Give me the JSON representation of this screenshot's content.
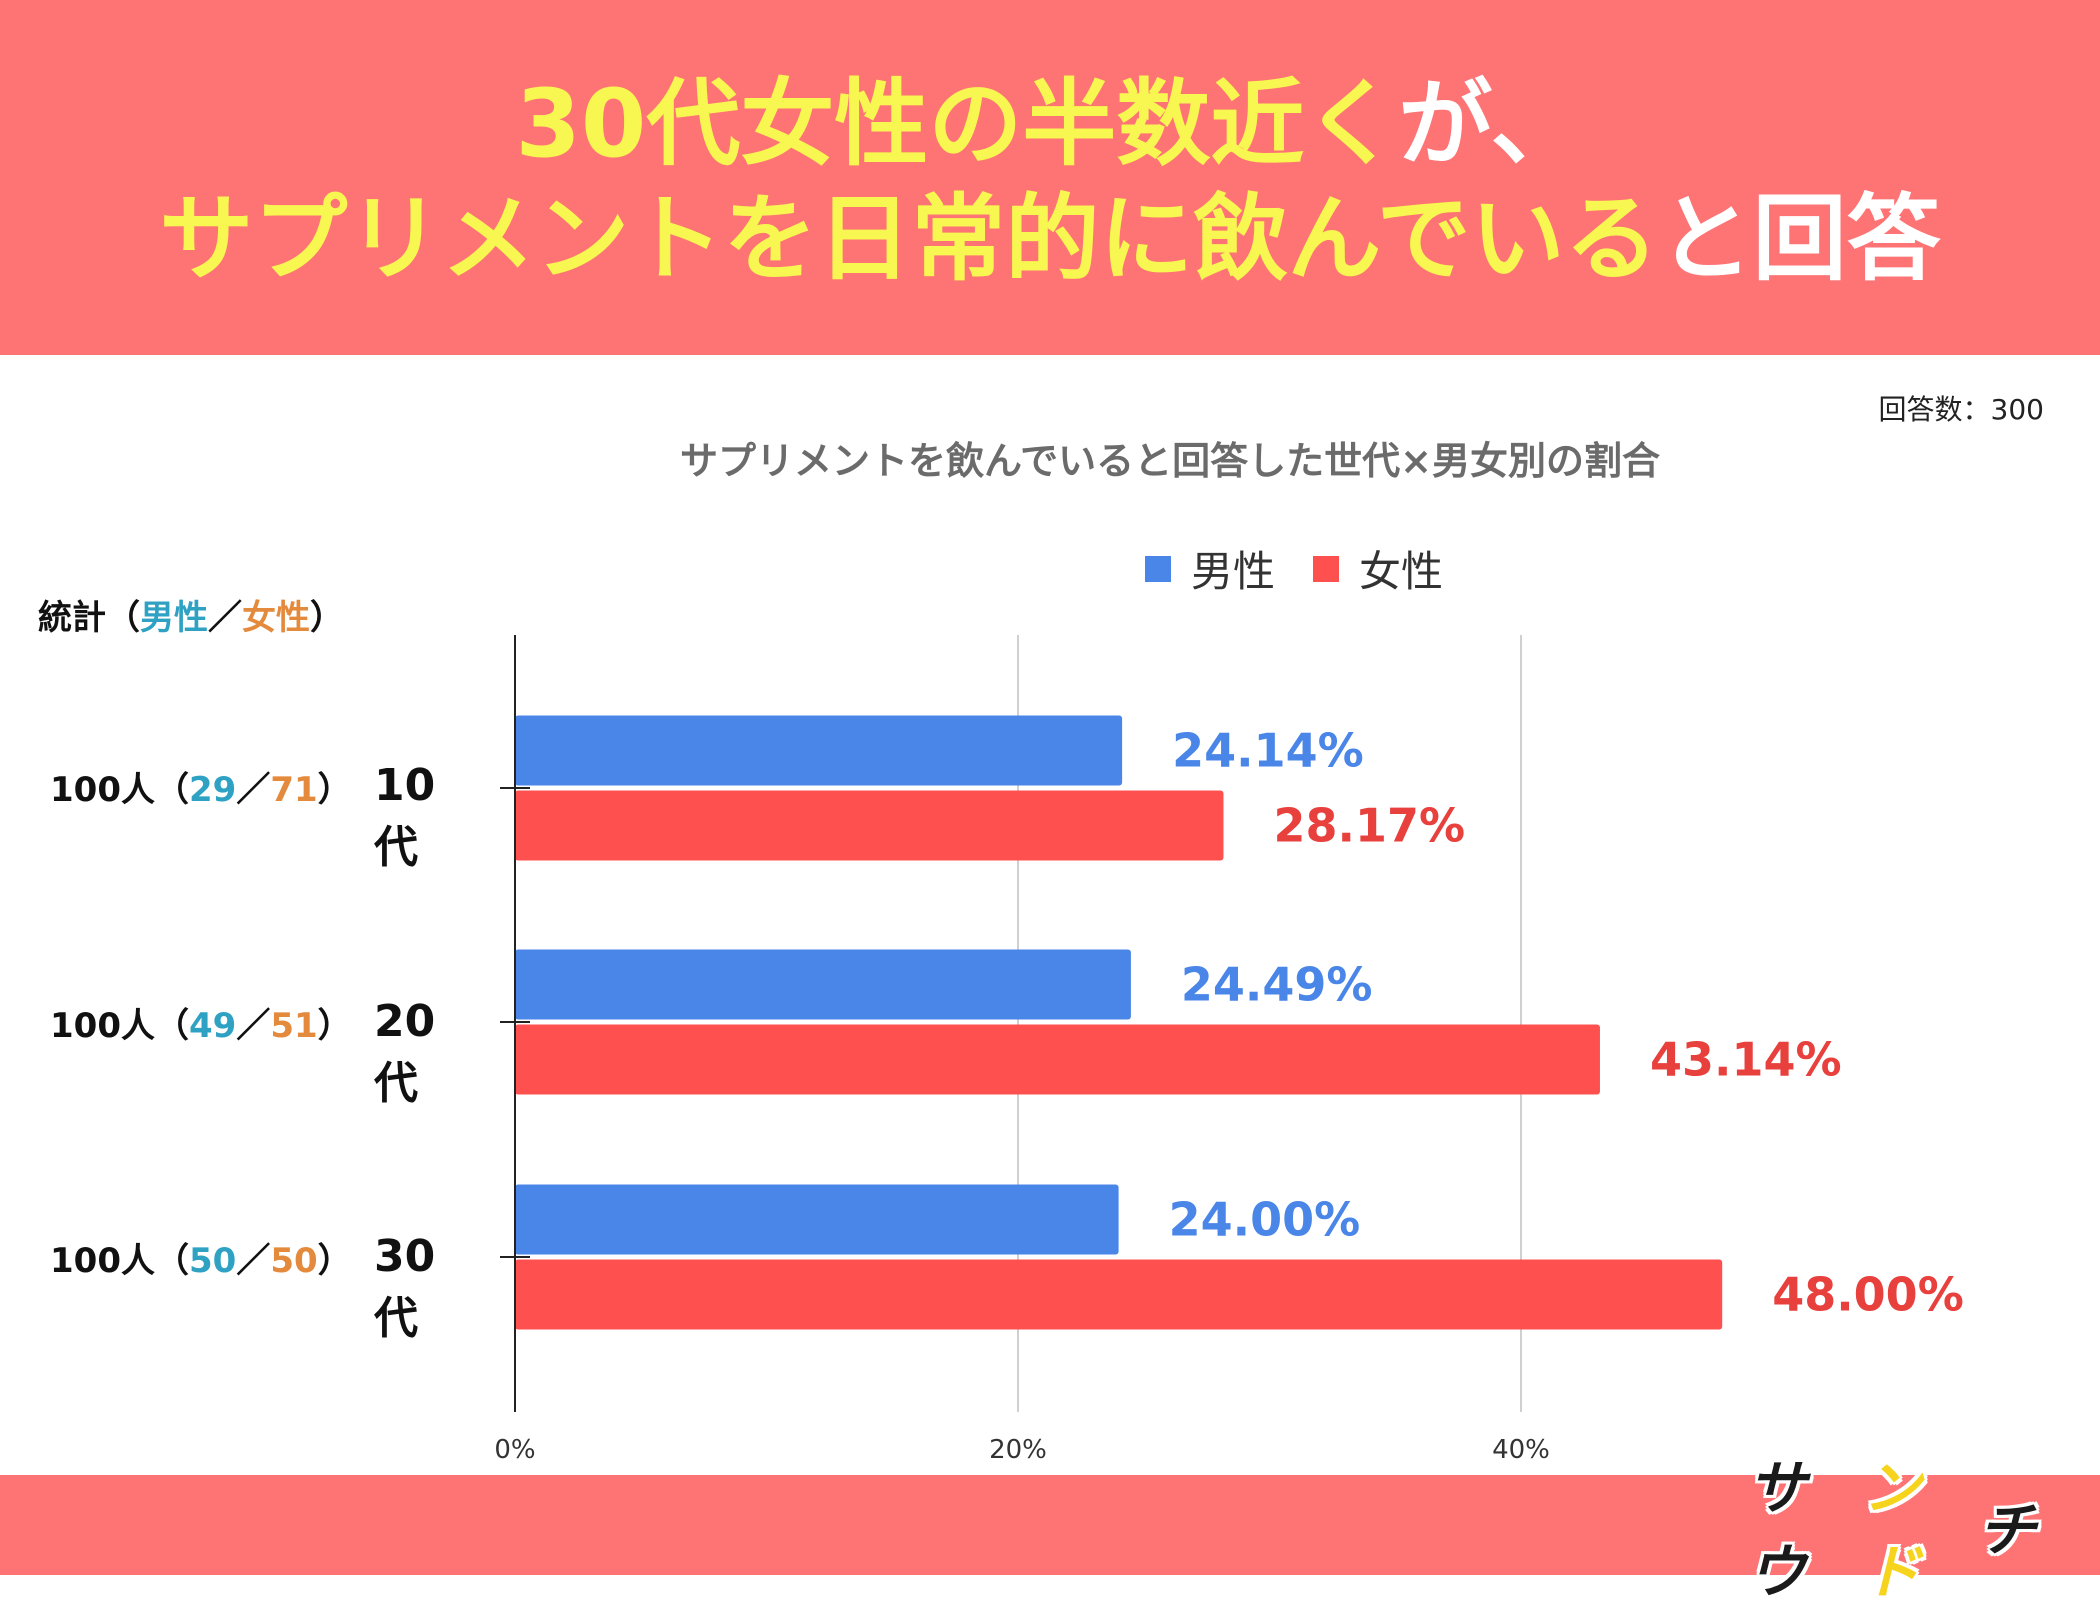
{
  "headline": {
    "line1_yellow": "30代女性の半数近く",
    "line1_white": "が、",
    "line2_yellow": "サプリメントを日常的に飲んでいる",
    "line2_white": "と回答"
  },
  "response_count": "回答数：300",
  "stats": {
    "header_prefix": "統計（",
    "header_male": "男性",
    "header_sep": "／",
    "header_female": "女性",
    "header_suffix": "）",
    "rows": [
      {
        "total": "100人（",
        "male": "29",
        "sep": "／",
        "female": "71",
        "close": "）"
      },
      {
        "total": "100人（",
        "male": "49",
        "sep": "／",
        "female": "51",
        "close": "）"
      },
      {
        "total": "100人（",
        "male": "50",
        "sep": "／",
        "female": "50",
        "close": "）"
      }
    ]
  },
  "logo": {
    "text_main": "サウ",
    "text_accent": "ンド",
    "text_end": "チ"
  },
  "colors": {
    "male": "#4a86e8",
    "female": "#ff5050",
    "header_bg": "#fe7374",
    "headline_yellow": "#f8f650"
  },
  "chart_data": {
    "type": "bar",
    "orientation": "horizontal",
    "title": "サプリメントを飲んでいると回答した世代×男女別の割合",
    "categories": [
      "10代",
      "20代",
      "30代"
    ],
    "series": [
      {
        "name": "男性",
        "values": [
          24.14,
          24.49,
          24.0
        ],
        "labels": [
          "24.14%",
          "24.49%",
          "24.00%"
        ]
      },
      {
        "name": "女性",
        "values": [
          28.17,
          43.14,
          48.0
        ],
        "labels": [
          "28.17%",
          "43.14%",
          "48.00%"
        ]
      }
    ],
    "xlim": [
      0,
      50
    ],
    "xticks": [
      0,
      20,
      40
    ],
    "xtick_labels": [
      "0%",
      "20%",
      "40%"
    ],
    "grid": true,
    "legend": "top"
  }
}
